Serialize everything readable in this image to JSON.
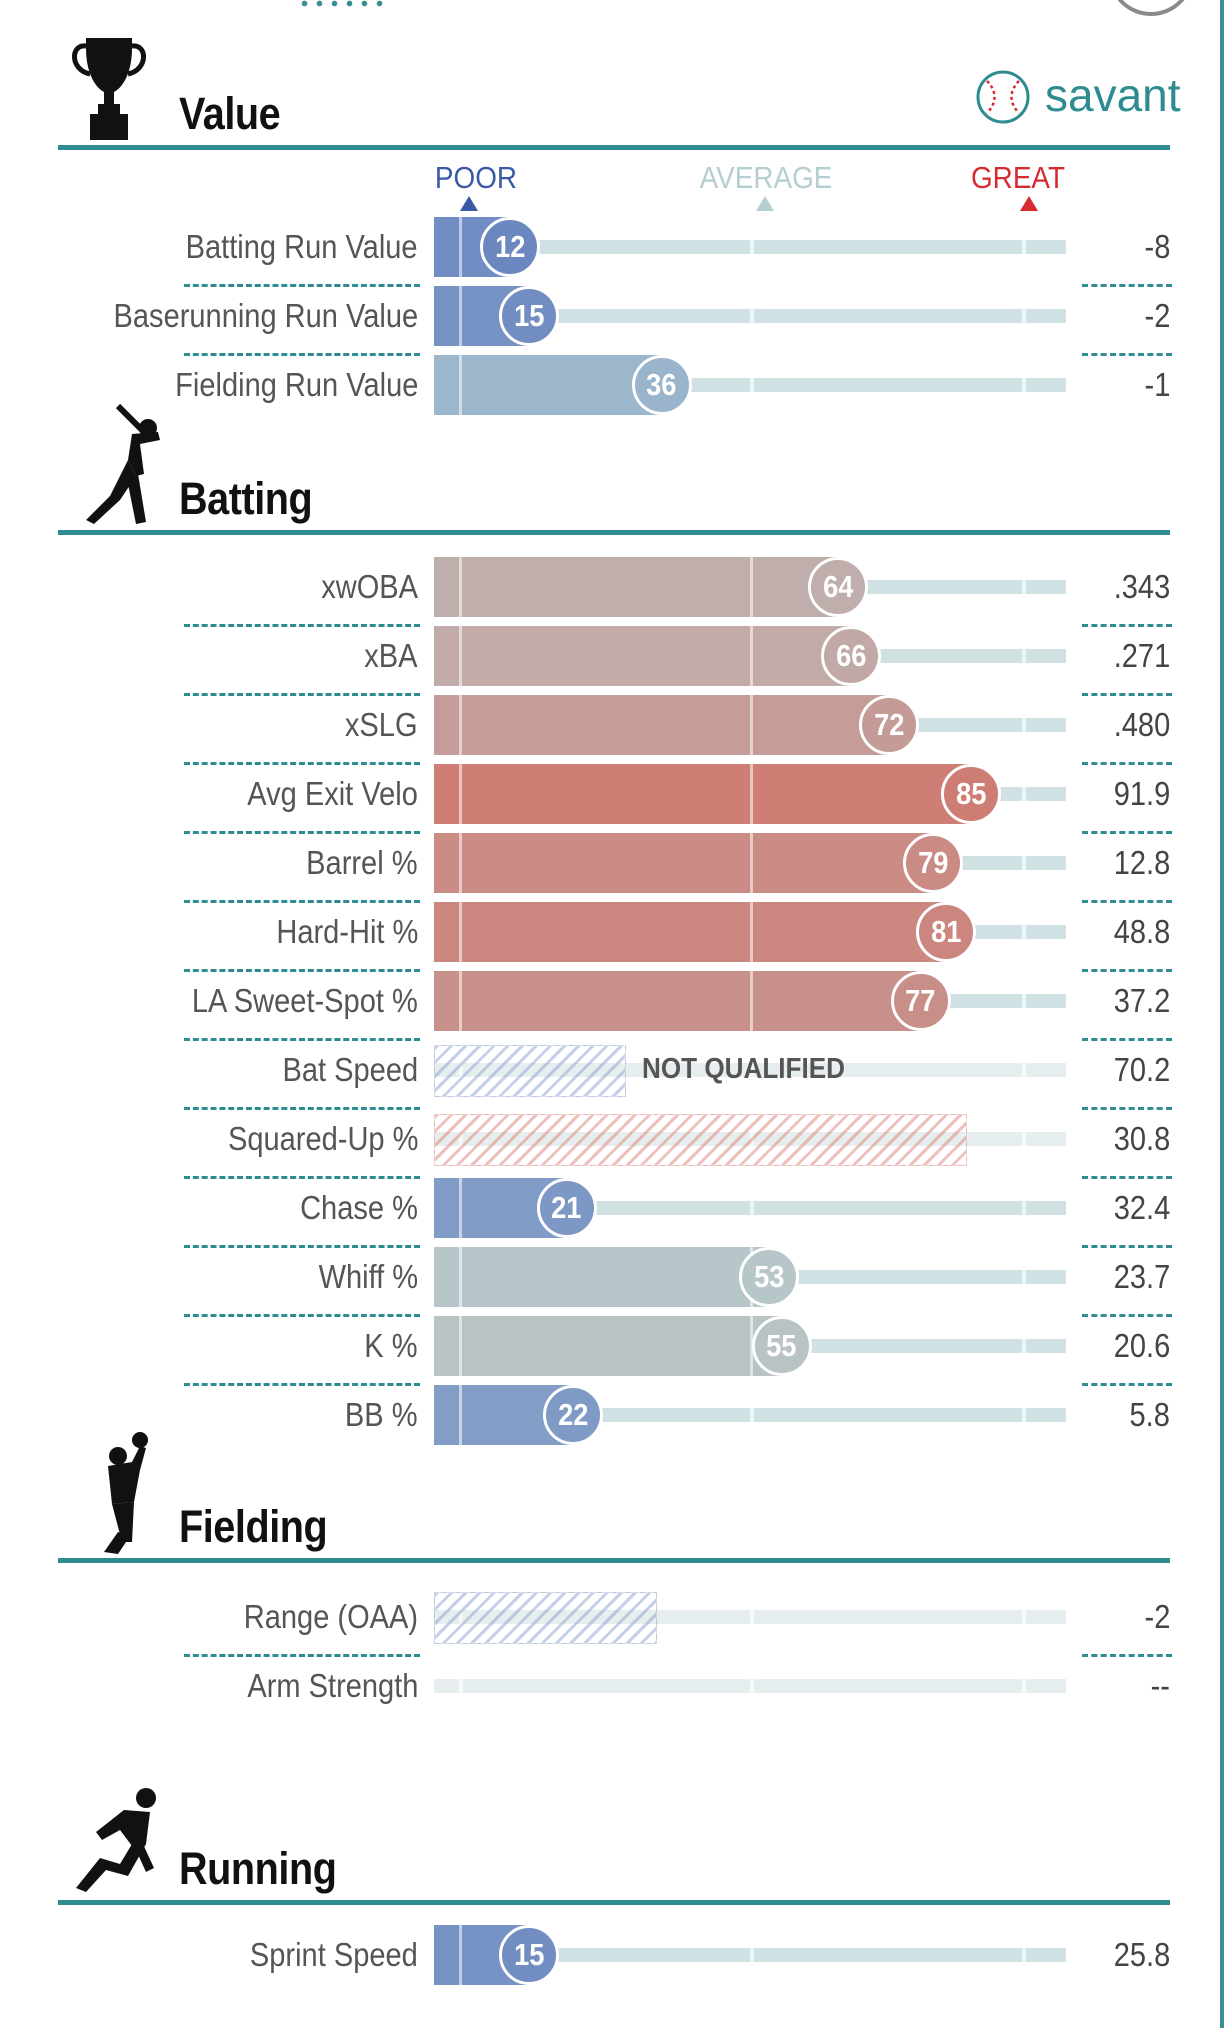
{
  "branding": {
    "logo_text": "savant",
    "logo_icon": "baseball-icon"
  },
  "scale_labels": {
    "poor": {
      "text": "POOR",
      "color": "#3a5aa6"
    },
    "average": {
      "text": "AVERAGE",
      "color": "#b4ced1"
    },
    "great": {
      "text": "GREAT",
      "color": "#d52b2f"
    }
  },
  "colors": {
    "accent": "#2e8c90",
    "poor": "#3a5aa6",
    "average": "#b4ced1",
    "great": "#d52b2f"
  },
  "sections": [
    {
      "key": "value",
      "title": "Value",
      "icon": "trophy-icon"
    },
    {
      "key": "batting",
      "title": "Batting",
      "icon": "batter-icon"
    },
    {
      "key": "fielding",
      "title": "Fielding",
      "icon": "fielder-icon"
    },
    {
      "key": "running",
      "title": "Running",
      "icon": "runner-icon"
    }
  ],
  "chart_data": {
    "type": "bar",
    "scale": [
      0,
      100
    ],
    "rows": [
      {
        "section": "value",
        "label": "Batting Run Value",
        "percentile": 12,
        "value": "-8"
      },
      {
        "section": "value",
        "label": "Baserunning Run Value",
        "percentile": 15,
        "value": "-2"
      },
      {
        "section": "value",
        "label": "Fielding Run Value",
        "percentile": 36,
        "value": "-1"
      },
      {
        "section": "batting",
        "label": "xwOBA",
        "percentile": 64,
        "value": ".343"
      },
      {
        "section": "batting",
        "label": "xBA",
        "percentile": 66,
        "value": ".271"
      },
      {
        "section": "batting",
        "label": "xSLG",
        "percentile": 72,
        "value": ".480"
      },
      {
        "section": "batting",
        "label": "Avg Exit Velo",
        "percentile": 85,
        "value": "91.9"
      },
      {
        "section": "batting",
        "label": "Barrel %",
        "percentile": 79,
        "value": "12.8"
      },
      {
        "section": "batting",
        "label": "Hard-Hit %",
        "percentile": 81,
        "value": "48.8"
      },
      {
        "section": "batting",
        "label": "LA Sweet-Spot %",
        "percentile": 77,
        "value": "37.2"
      },
      {
        "section": "batting",
        "label": "Bat Speed",
        "percentile": null,
        "status": "NOT QUALIFIED",
        "hatch": 0.3,
        "hatch_color": "blue",
        "value": "70.2"
      },
      {
        "section": "batting",
        "label": "Squared-Up %",
        "percentile": null,
        "hatch": 0.84,
        "hatch_color": "red",
        "value": "30.8"
      },
      {
        "section": "batting",
        "label": "Chase %",
        "percentile": 21,
        "value": "32.4"
      },
      {
        "section": "batting",
        "label": "Whiff %",
        "percentile": 53,
        "value": "23.7"
      },
      {
        "section": "batting",
        "label": "K %",
        "percentile": 55,
        "value": "20.6"
      },
      {
        "section": "batting",
        "label": "BB %",
        "percentile": 22,
        "value": "5.8"
      },
      {
        "section": "fielding",
        "label": "Range (OAA)",
        "percentile": null,
        "hatch": 0.35,
        "hatch_color": "blue",
        "value": "-2"
      },
      {
        "section": "fielding",
        "label": "Arm Strength",
        "percentile": null,
        "value": "--"
      },
      {
        "section": "running",
        "label": "Sprint Speed",
        "percentile": 15,
        "value": "25.8"
      }
    ]
  }
}
